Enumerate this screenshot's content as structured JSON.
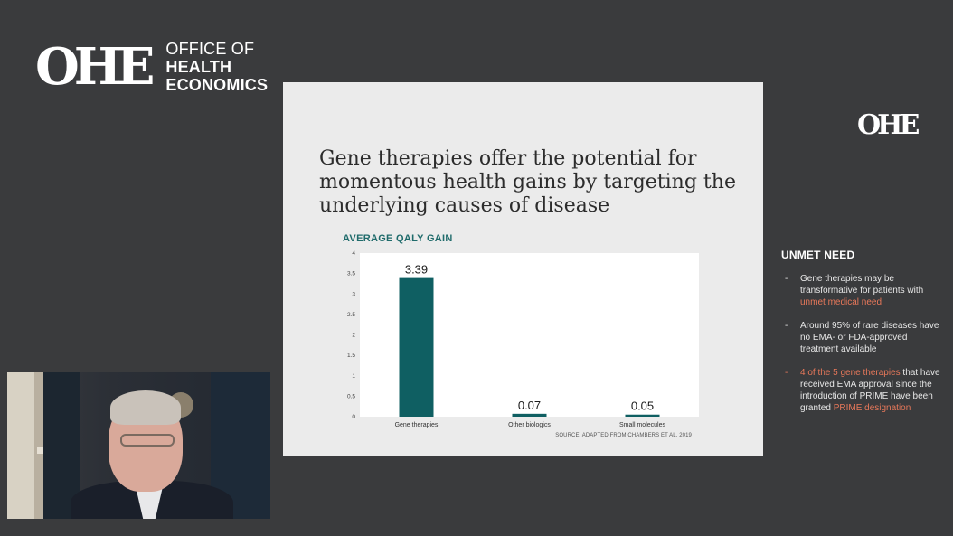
{
  "brand": {
    "mark": "OHE",
    "line1": "OFFICE OF",
    "line2": "HEALTH",
    "line3": "ECONOMICS"
  },
  "slide": {
    "title": "Gene therapies offer the potential for momentous health gains by targeting the underlying causes of disease",
    "source": "SOURCE: ADAPTED FROM CHAMBERS ET AL. 2019"
  },
  "chart_data": {
    "type": "bar",
    "title": "AVERAGE QALY GAIN",
    "categories": [
      "Gene therapies",
      "Other biologics",
      "Small molecules"
    ],
    "values": [
      3.39,
      0.07,
      0.05
    ],
    "data_labels": [
      "3.39",
      "0.07",
      "0.05"
    ],
    "ylim": [
      0,
      4
    ],
    "yticks": [
      "0",
      "0.5",
      "1",
      "1.5",
      "2",
      "2.5",
      "3",
      "3.5",
      "4"
    ],
    "xlabel": "",
    "ylabel": "",
    "grid": false,
    "bar_color": "#0f5f62",
    "plot_background": "#ffffff"
  },
  "side": {
    "logo": "OHE",
    "heading": "UNMET NEED",
    "bullets": [
      {
        "dash": "-",
        "pre": "Gene therapies may be transformative for patients with ",
        "hl": "unmet medical need",
        "post": ""
      },
      {
        "dash": "-",
        "pre": "Around 95% of rare diseases have no EMA- or FDA-approved treatment available",
        "hl": "",
        "post": ""
      },
      {
        "dash": "-",
        "hl1": "4 of the 5 gene therapies",
        "mid": " that have received EMA approval since the introduction of PRIME have been granted ",
        "hl2": "PRIME designation"
      }
    ]
  },
  "colors": {
    "background": "#3a3b3d",
    "slide": "#ebebeb",
    "accent": "#e8785a",
    "teal": "#0f5f62"
  }
}
